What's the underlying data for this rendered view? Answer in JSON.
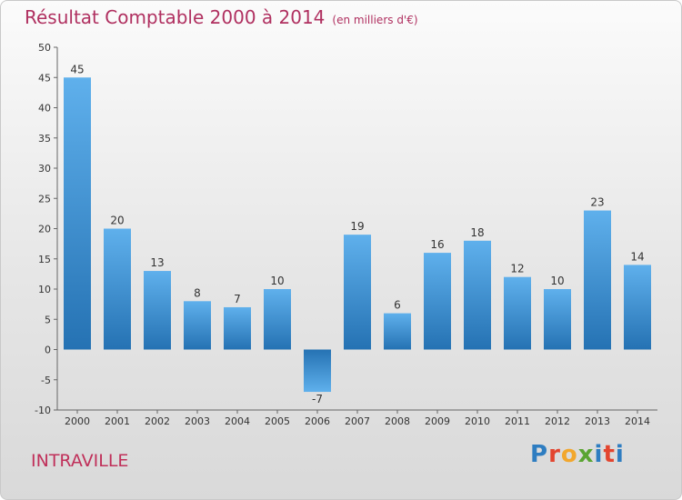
{
  "header": {
    "title": "Résultat Comptable 2000 à 2014",
    "unit": "(en milliers d'€)"
  },
  "footer": {
    "commune": "INTRAVILLE",
    "logo_letters": [
      "P",
      "r",
      "o",
      "x",
      "i",
      "t",
      "i"
    ],
    "logo_colors": [
      "#2e7dc1",
      "#e3452f",
      "#f2a72e",
      "#5aa532",
      "#2e7dc1",
      "#e3452f",
      "#2e7dc1"
    ]
  },
  "colors": {
    "bar_light": "#5fb0ec",
    "bar_dark": "#2572b3",
    "title": "#b03060"
  },
  "chart_data": {
    "type": "bar",
    "title": "Résultat Comptable 2000 à 2014",
    "subtitle": "(en milliers d'€)",
    "categories": [
      "2000",
      "2001",
      "2002",
      "2003",
      "2004",
      "2005",
      "2006",
      "2007",
      "2008",
      "2009",
      "2010",
      "2011",
      "2012",
      "2013",
      "2014"
    ],
    "values": [
      45,
      20,
      13,
      8,
      7,
      10,
      -7,
      19,
      6,
      16,
      18,
      12,
      10,
      23,
      14
    ],
    "ylim": [
      -10,
      50
    ],
    "yticks": [
      -10,
      -5,
      0,
      5,
      10,
      15,
      20,
      25,
      30,
      35,
      40,
      45,
      50
    ],
    "grid": false,
    "data_labels": true
  }
}
